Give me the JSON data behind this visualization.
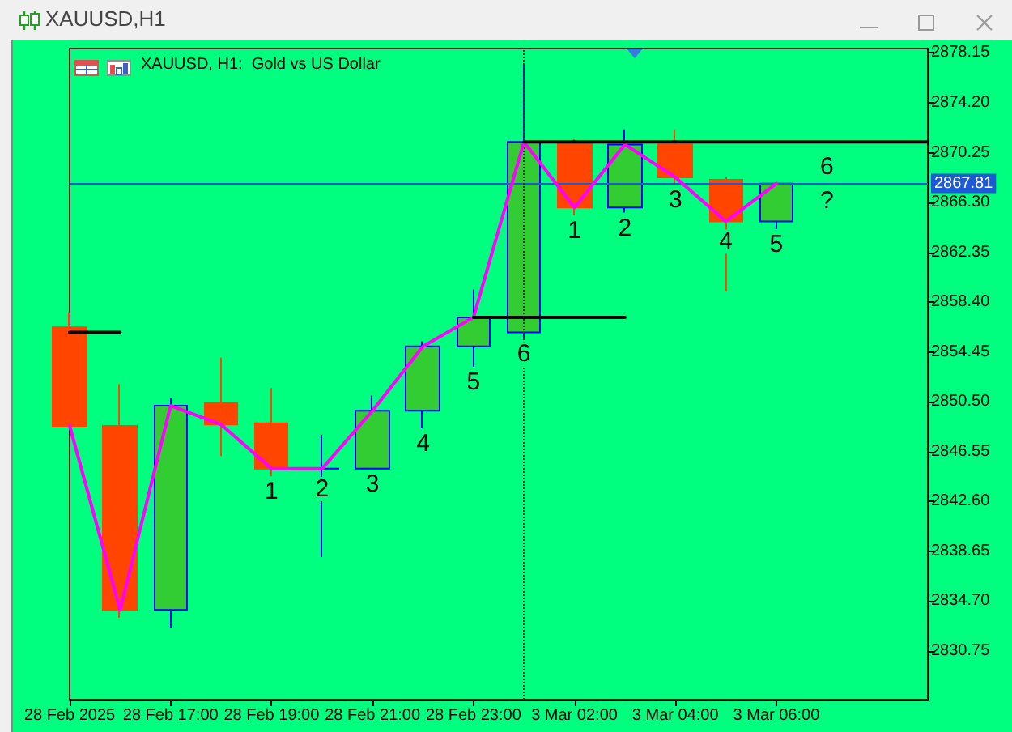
{
  "chart_data": {
    "type": "candlestick",
    "title": "XAUUSD,H1",
    "subtitle": "XAUUSD, H1:  Gold vs US Dollar",
    "categories": [
      "28 Feb 2025",
      null,
      "28 Feb 17:00",
      null,
      "28 Feb 19:00",
      null,
      "28 Feb 21:00",
      null,
      "28 Feb 23:00",
      null,
      "3 Mar 02:00",
      null,
      "3 Mar 04:00",
      null,
      "3 Mar 06:00",
      null,
      null,
      null
    ],
    "series": [
      {
        "ohlc": [
          [
            2856.4,
            2857.6,
            2848.6,
            2848.6
          ],
          [
            2848.6,
            2851.9,
            2833.4,
            2834.0
          ],
          [
            2834.0,
            2850.8,
            2832.6,
            2850.2
          ],
          [
            2850.4,
            2854.0,
            2846.2,
            2848.7
          ],
          [
            2848.8,
            2851.6,
            2844.6,
            2845.2
          ],
          [
            2845.2,
            2847.9,
            2838.2,
            2845.2
          ],
          [
            2845.2,
            2851.0,
            2845.2,
            2849.8
          ],
          [
            2849.8,
            2855.3,
            2848.4,
            2854.9
          ],
          [
            2854.9,
            2859.4,
            2853.3,
            2857.2
          ],
          [
            2856.0,
            2877.3,
            2855.5,
            2871.1
          ],
          [
            2871.1,
            2871.3,
            2865.3,
            2865.9
          ],
          [
            2865.9,
            2872.1,
            2865.5,
            2870.9
          ],
          [
            2870.9,
            2872.1,
            2867.7,
            2868.3
          ],
          [
            2868.1,
            2868.3,
            2859.3,
            2864.8
          ],
          [
            2864.8,
            2867.9,
            2864.2,
            2867.8
          ],
          null,
          null,
          null
        ],
        "colors": [
          "#ff4500",
          "#ff4500",
          "#32cd32",
          "#ff4500",
          "#ff4500",
          "#0000ff",
          "#32cd32",
          "#32cd32",
          "#32cd32",
          "#32cd32",
          "#ff4500",
          "#32cd32",
          "#ff4500",
          "#ff4500",
          "#32cd32",
          null,
          null,
          null
        ],
        "value_labels": [
          null,
          null,
          null,
          null,
          "1",
          "2",
          "3",
          "4",
          "5",
          "6",
          "1",
          "2",
          "3",
          "4",
          "5",
          null,
          null,
          null
        ]
      },
      {
        "type": "line",
        "color": "#ff00ff",
        "values": [
          2848.6,
          2834.0,
          2850.2,
          2848.7,
          2845.2,
          2845.2,
          2849.8,
          2854.9,
          2857.2,
          2871.1,
          2865.9,
          2870.9,
          2868.3,
          2864.8,
          2867.8,
          null,
          null,
          null
        ]
      },
      {
        "type": "line",
        "color": "#000000",
        "values": [
          2856.0,
          2856.0,
          null,
          null,
          null,
          null,
          null,
          null,
          null,
          null,
          null,
          null,
          null,
          null,
          null,
          null,
          null,
          null
        ]
      },
      {
        "type": "line",
        "color": "#000000",
        "values": [
          null,
          null,
          null,
          null,
          null,
          null,
          null,
          null,
          2857.2,
          2857.2,
          2857.2,
          2857.2,
          null,
          null,
          null,
          null,
          null,
          null
        ]
      },
      {
        "type": "line",
        "color": "#000000",
        "values": [
          null,
          null,
          null,
          null,
          null,
          null,
          null,
          null,
          null,
          2871.1,
          2871.1,
          2871.1,
          2871.1,
          2871.1,
          2871.1,
          2871.1,
          2871.1,
          2871.1
        ]
      }
    ],
    "ylim": [
      2826.9,
      2878.5
    ],
    "yticks": [
      2830.75,
      {
        "value": 2834.7,
        "label": "2834.70"
      },
      2838.65,
      {
        "value": 2842.6,
        "label": "2842.60"
      },
      2846.55,
      {
        "value": 2850.5,
        "label": "2850.50"
      },
      2854.45,
      {
        "value": 2858.4,
        "label": "2858.40"
      },
      2862.35,
      {
        "value": 2866.3,
        "label": "2866.30"
      },
      2870.25,
      {
        "value": 2874.2,
        "label": "2874.20"
      },
      2878.15
    ],
    "ref_lines": [
      {
        "axis": "y",
        "value": 2867.81,
        "label": "2867.81",
        "color": "#1e5ad8"
      }
    ],
    "annotations": [
      "6",
      "?"
    ],
    "marker": "none"
  }
}
